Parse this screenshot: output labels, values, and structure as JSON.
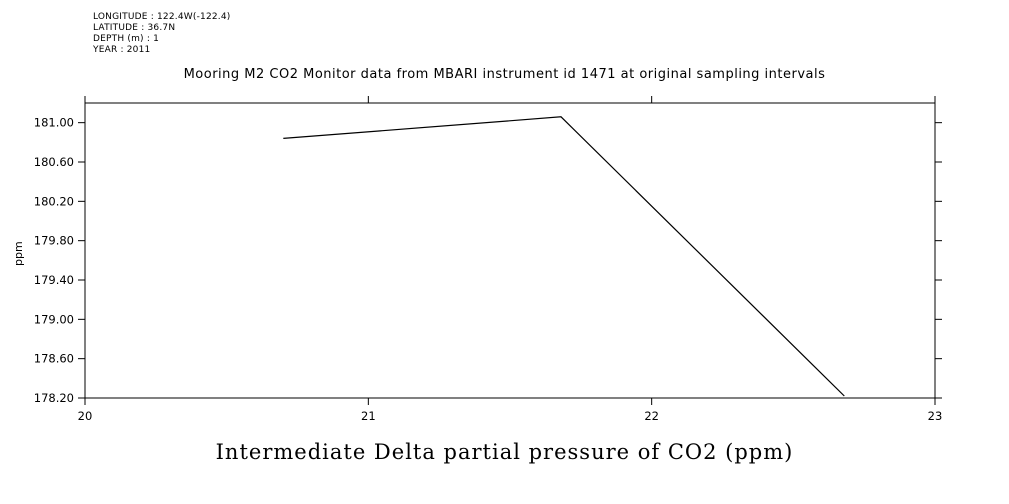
{
  "meta": {
    "longitude": "LONGITUDE : 122.4W(-122.4)",
    "latitude": "LATITUDE : 36.7N",
    "depth": "DEPTH (m) : 1",
    "year": "YEAR : 2011"
  },
  "title": "Mooring M2 CO2 Monitor data from MBARI instrument id 1471 at original sampling intervals",
  "ylabel": "ppm",
  "xlabel_bottom": "Intermediate Delta partial pressure of CO2 (ppm)",
  "chart_data": {
    "type": "line",
    "title": "Mooring M2 CO2 Monitor data from MBARI instrument id 1471 at original sampling intervals",
    "xlabel": "Intermediate Delta partial pressure of CO2 (ppm)",
    "ylabel": "ppm",
    "x": [
      20.7,
      21.68,
      22.68
    ],
    "y": [
      180.84,
      181.06,
      178.22
    ],
    "xlim": [
      20,
      23
    ],
    "ylim": [
      178.2,
      181.2
    ],
    "xticks": [
      "20",
      "21",
      "22",
      "23"
    ],
    "yticks": [
      "181.00",
      "180.60",
      "180.20",
      "179.80",
      "179.40",
      "179.00",
      "178.60",
      "178.20"
    ],
    "line_color": "#000000",
    "grid": false,
    "legend": false
  }
}
